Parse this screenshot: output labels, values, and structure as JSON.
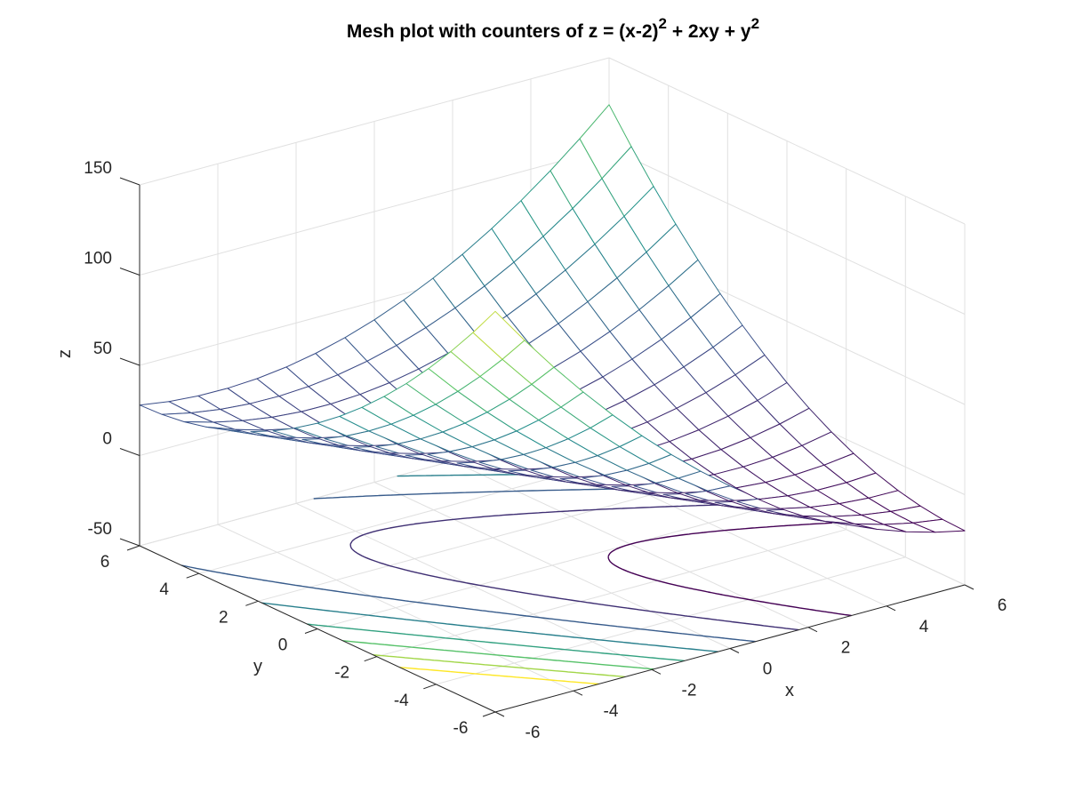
{
  "chart_data": {
    "type": "mesh",
    "title": {
      "prefix": "Mesh plot with counters of z = (x-2)",
      "sup1": "2",
      "middle": " + 2xy + y",
      "sup2": "2"
    },
    "function": "z = (x-2)^2 + 2xy + y^2",
    "xlabel": "x",
    "ylabel": "y",
    "zlabel": "z",
    "xlim": [
      -6,
      6
    ],
    "ylim": [
      -6,
      6
    ],
    "zlim": [
      -50,
      150
    ],
    "xticks": [
      -6,
      -4,
      -2,
      0,
      2,
      4,
      6
    ],
    "yticks": [
      -6,
      -4,
      -2,
      0,
      2,
      4,
      6
    ],
    "zticks": [
      -50,
      0,
      50,
      100,
      150
    ],
    "mesh_grid": {
      "x_start": -6,
      "x_step": 0.75,
      "x_count": 17,
      "y_start": -6,
      "y_step": 0.75,
      "y_count": 17
    },
    "contour_levels": [
      0,
      15,
      30,
      45,
      60,
      75,
      90,
      105
    ],
    "contour_plane_z": -50,
    "colormap": "viridis",
    "colors": [
      "#440154",
      "#3b528b",
      "#21918c",
      "#5ec962",
      "#fde725"
    ],
    "grid": true,
    "view": {
      "azimuth": -37.5,
      "elevation": 30
    }
  }
}
